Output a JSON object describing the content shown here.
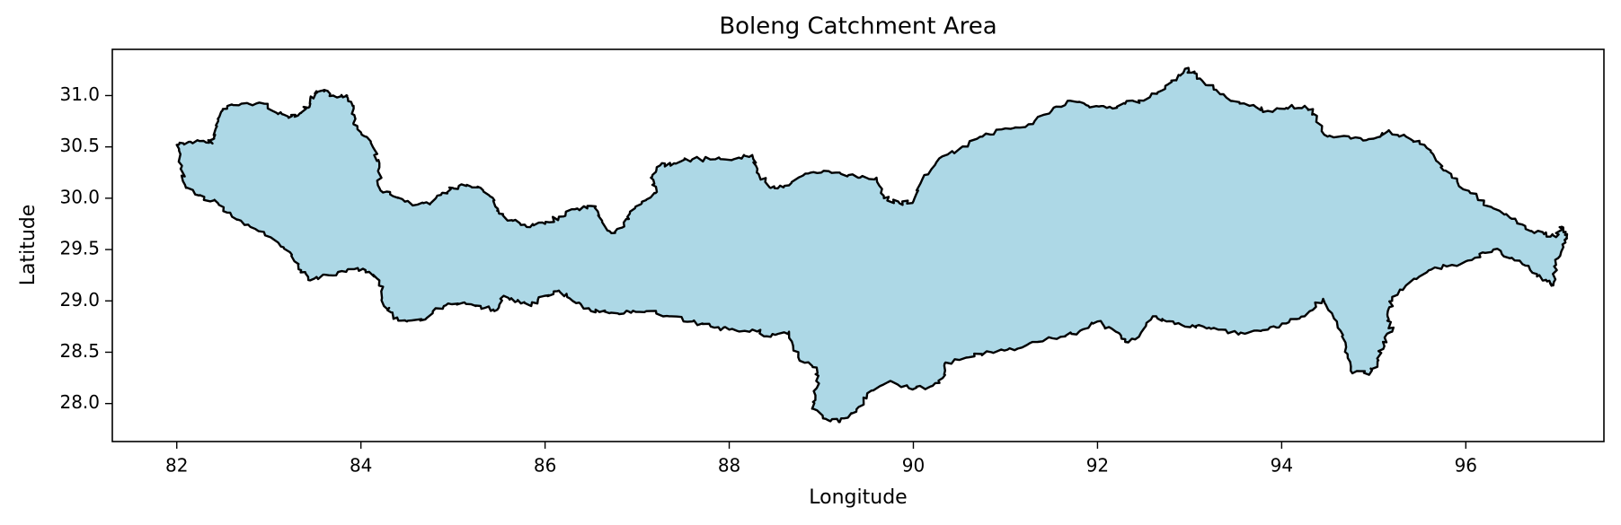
{
  "figure": {
    "title": "Boleng Catchment Area",
    "xlabel": "Longitude",
    "ylabel": "Latitude"
  },
  "map_data": {
    "type": "choropleth-outline",
    "xlim": [
      81.3,
      97.5
    ],
    "ylim": [
      27.63,
      31.45
    ],
    "xticks": [
      82,
      84,
      86,
      88,
      90,
      92,
      94,
      96
    ],
    "yticks": [
      28.0,
      28.5,
      29.0,
      29.5,
      30.0,
      30.5,
      31.0
    ],
    "fill_color": "#add8e6",
    "edge_color": "#000000",
    "boundary": [
      [
        82.0,
        30.52
      ],
      [
        82.15,
        30.55
      ],
      [
        82.35,
        30.54
      ],
      [
        82.4,
        30.58
      ],
      [
        82.45,
        30.75
      ],
      [
        82.5,
        30.87
      ],
      [
        82.7,
        30.92
      ],
      [
        82.95,
        30.92
      ],
      [
        83.1,
        30.82
      ],
      [
        83.25,
        30.8
      ],
      [
        83.35,
        30.83
      ],
      [
        83.45,
        30.92
      ],
      [
        83.5,
        31.02
      ],
      [
        83.6,
        31.04
      ],
      [
        83.7,
        31.0
      ],
      [
        83.85,
        31.0
      ],
      [
        83.92,
        30.9
      ],
      [
        83.92,
        30.72
      ],
      [
        84.05,
        30.6
      ],
      [
        84.15,
        30.47
      ],
      [
        84.2,
        30.3
      ],
      [
        84.2,
        30.1
      ],
      [
        84.35,
        30.02
      ],
      [
        84.55,
        29.94
      ],
      [
        84.75,
        29.94
      ],
      [
        84.88,
        30.05
      ],
      [
        85.0,
        30.1
      ],
      [
        85.15,
        30.13
      ],
      [
        85.3,
        30.1
      ],
      [
        85.45,
        29.98
      ],
      [
        85.5,
        29.85
      ],
      [
        85.65,
        29.78
      ],
      [
        85.8,
        29.72
      ],
      [
        86.0,
        29.75
      ],
      [
        86.15,
        29.82
      ],
      [
        86.35,
        29.9
      ],
      [
        86.55,
        29.92
      ],
      [
        86.62,
        29.78
      ],
      [
        86.72,
        29.66
      ],
      [
        86.85,
        29.72
      ],
      [
        86.92,
        29.85
      ],
      [
        87.05,
        29.95
      ],
      [
        87.2,
        30.05
      ],
      [
        87.15,
        30.2
      ],
      [
        87.25,
        30.32
      ],
      [
        87.4,
        30.34
      ],
      [
        87.6,
        30.38
      ],
      [
        87.85,
        30.38
      ],
      [
        88.05,
        30.38
      ],
      [
        88.25,
        30.42
      ],
      [
        88.3,
        30.25
      ],
      [
        88.45,
        30.1
      ],
      [
        88.6,
        30.12
      ],
      [
        88.8,
        30.22
      ],
      [
        89.0,
        30.25
      ],
      [
        89.2,
        30.25
      ],
      [
        89.4,
        30.2
      ],
      [
        89.6,
        30.2
      ],
      [
        89.68,
        30.0
      ],
      [
        89.85,
        29.95
      ],
      [
        90.0,
        29.97
      ],
      [
        90.08,
        30.15
      ],
      [
        90.25,
        30.35
      ],
      [
        90.5,
        30.48
      ],
      [
        90.75,
        30.6
      ],
      [
        91.0,
        30.68
      ],
      [
        91.25,
        30.72
      ],
      [
        91.5,
        30.85
      ],
      [
        91.7,
        30.95
      ],
      [
        91.9,
        30.9
      ],
      [
        92.1,
        30.88
      ],
      [
        92.3,
        30.92
      ],
      [
        92.5,
        30.95
      ],
      [
        92.7,
        31.05
      ],
      [
        92.85,
        31.15
      ],
      [
        92.95,
        31.26
      ],
      [
        93.05,
        31.22
      ],
      [
        93.2,
        31.1
      ],
      [
        93.4,
        30.98
      ],
      [
        93.65,
        30.9
      ],
      [
        93.85,
        30.85
      ],
      [
        94.05,
        30.88
      ],
      [
        94.25,
        30.9
      ],
      [
        94.35,
        30.82
      ],
      [
        94.5,
        30.6
      ],
      [
        94.75,
        30.58
      ],
      [
        95.0,
        30.58
      ],
      [
        95.15,
        30.65
      ],
      [
        95.35,
        30.6
      ],
      [
        95.55,
        30.52
      ],
      [
        95.7,
        30.35
      ],
      [
        95.85,
        30.2
      ],
      [
        96.05,
        30.05
      ],
      [
        96.3,
        29.9
      ],
      [
        96.5,
        29.8
      ],
      [
        96.65,
        29.7
      ],
      [
        96.85,
        29.65
      ],
      [
        96.98,
        29.62
      ],
      [
        97.05,
        29.72
      ],
      [
        97.1,
        29.65
      ],
      [
        97.05,
        29.55
      ],
      [
        96.98,
        29.35
      ],
      [
        96.95,
        29.15
      ],
      [
        96.85,
        29.2
      ],
      [
        96.7,
        29.3
      ],
      [
        96.5,
        29.42
      ],
      [
        96.3,
        29.5
      ],
      [
        96.1,
        29.42
      ],
      [
        95.85,
        29.35
      ],
      [
        95.6,
        29.3
      ],
      [
        95.35,
        29.15
      ],
      [
        95.2,
        29.0
      ],
      [
        95.15,
        28.85
      ],
      [
        95.2,
        28.7
      ],
      [
        95.1,
        28.6
      ],
      [
        95.05,
        28.42
      ],
      [
        94.95,
        28.28
      ],
      [
        94.75,
        28.32
      ],
      [
        94.7,
        28.55
      ],
      [
        94.6,
        28.8
      ],
      [
        94.45,
        29.02
      ],
      [
        94.25,
        28.85
      ],
      [
        94.05,
        28.78
      ],
      [
        93.85,
        28.72
      ],
      [
        93.6,
        28.68
      ],
      [
        93.35,
        28.72
      ],
      [
        93.15,
        28.75
      ],
      [
        92.95,
        28.75
      ],
      [
        92.75,
        28.8
      ],
      [
        92.6,
        28.85
      ],
      [
        92.45,
        28.65
      ],
      [
        92.3,
        28.6
      ],
      [
        92.2,
        28.7
      ],
      [
        92.0,
        28.8
      ],
      [
        91.8,
        28.7
      ],
      [
        91.6,
        28.65
      ],
      [
        91.35,
        28.6
      ],
      [
        91.1,
        28.52
      ],
      [
        90.85,
        28.5
      ],
      [
        90.6,
        28.45
      ],
      [
        90.35,
        28.4
      ],
      [
        90.32,
        28.25
      ],
      [
        90.15,
        28.15
      ],
      [
        89.95,
        28.15
      ],
      [
        89.75,
        28.22
      ],
      [
        89.5,
        28.1
      ],
      [
        89.38,
        27.92
      ],
      [
        89.2,
        27.82
      ],
      [
        89.05,
        27.85
      ],
      [
        88.9,
        27.95
      ],
      [
        88.95,
        28.15
      ],
      [
        88.95,
        28.35
      ],
      [
        88.75,
        28.45
      ],
      [
        88.65,
        28.7
      ],
      [
        88.45,
        28.65
      ],
      [
        88.25,
        28.72
      ],
      [
        88.0,
        28.72
      ],
      [
        87.8,
        28.75
      ],
      [
        87.6,
        28.8
      ],
      [
        87.35,
        28.85
      ],
      [
        87.1,
        28.9
      ],
      [
        86.9,
        28.9
      ],
      [
        86.7,
        28.88
      ],
      [
        86.5,
        28.9
      ],
      [
        86.3,
        29.0
      ],
      [
        86.15,
        29.1
      ],
      [
        86.0,
        29.05
      ],
      [
        85.85,
        28.95
      ],
      [
        85.7,
        29.0
      ],
      [
        85.55,
        29.05
      ],
      [
        85.45,
        28.9
      ],
      [
        85.3,
        28.95
      ],
      [
        85.1,
        28.98
      ],
      [
        84.9,
        28.95
      ],
      [
        84.7,
        28.82
      ],
      [
        84.5,
        28.8
      ],
      [
        84.35,
        28.85
      ],
      [
        84.25,
        28.95
      ],
      [
        84.2,
        29.2
      ],
      [
        84.05,
        29.3
      ],
      [
        83.85,
        29.3
      ],
      [
        83.65,
        29.25
      ],
      [
        83.45,
        29.2
      ],
      [
        83.35,
        29.3
      ],
      [
        83.25,
        29.45
      ],
      [
        83.05,
        29.6
      ],
      [
        82.8,
        29.72
      ],
      [
        82.6,
        29.82
      ],
      [
        82.45,
        29.95
      ],
      [
        82.25,
        30.03
      ],
      [
        82.1,
        30.1
      ],
      [
        82.05,
        30.3
      ],
      [
        82.0,
        30.52
      ]
    ]
  }
}
